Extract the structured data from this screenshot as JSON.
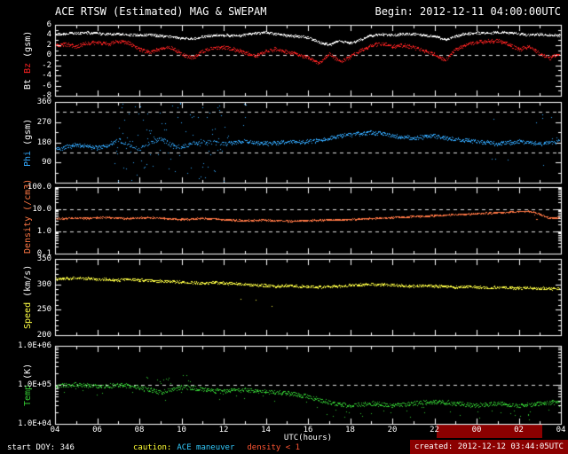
{
  "chart_data": {
    "type": "scatter",
    "title": "ACE RTSW (Estimated) MAG & SWEPAM",
    "begin_label": "Begin: 2012-12-11 04:00:00UTC",
    "x": {
      "label": "UTC(hours)",
      "range_hours": [
        4,
        28
      ],
      "tick_step_hours": 2,
      "ticks": [
        "04",
        "06",
        "08",
        "10",
        "12",
        "14",
        "16",
        "18",
        "20",
        "22",
        "00",
        "02",
        "04"
      ]
    },
    "sample_step_hours": 0.5,
    "panels": [
      {
        "id": "mag",
        "scale": "linear",
        "ylim": [
          -8,
          6
        ],
        "yminor": 1,
        "yticks": [
          [
            6,
            "6"
          ],
          [
            4,
            "4"
          ],
          [
            2,
            "2"
          ],
          [
            0,
            "0"
          ],
          [
            -2,
            "-2"
          ],
          [
            -4,
            "-4"
          ],
          [
            -6,
            "-6"
          ],
          [
            -8,
            "-8"
          ]
        ],
        "dashed": [
          0
        ],
        "ylabel_parts": [
          {
            "text": "Bt",
            "color": "#ffffff"
          },
          {
            "text": "Bz",
            "color": "#ff2222"
          },
          {
            "text": "(gsm)",
            "color": "#ffffff"
          }
        ],
        "series": [
          {
            "name": "Bt",
            "color": "#ffffff",
            "jitter": 0.22,
            "values": [
              4.2,
              4.3,
              4.4,
              4.5,
              4.4,
              4.2,
              4.3,
              4.1,
              4.0,
              4.1,
              3.9,
              3.7,
              3.4,
              3.3,
              3.7,
              4.0,
              4.0,
              3.9,
              4.1,
              4.4,
              4.6,
              4.2,
              3.9,
              3.8,
              3.6,
              2.6,
              2.1,
              3.0,
              2.4,
              3.2,
              3.9,
              4.2,
              4.0,
              4.3,
              4.2,
              4.0,
              3.8,
              3.1,
              3.8,
              4.3,
              4.5,
              4.4,
              4.6,
              4.5,
              4.3,
              4.1,
              4.2,
              4.0,
              4.0
            ]
          },
          {
            "name": "Bz",
            "color": "#ff2222",
            "jitter": 0.35,
            "values": [
              2.0,
              2.2,
              1.8,
              2.4,
              2.6,
              2.2,
              2.8,
              2.5,
              1.2,
              0.6,
              1.4,
              1.6,
              0.3,
              -0.5,
              0.8,
              1.5,
              1.6,
              1.2,
              0.6,
              -0.2,
              0.9,
              1.3,
              0.7,
              0.2,
              -0.4,
              -1.6,
              0.4,
              -1.2,
              -0.3,
              1.0,
              2.0,
              2.3,
              1.8,
              2.0,
              1.6,
              1.0,
              0.2,
              -1.0,
              1.2,
              2.2,
              2.6,
              2.8,
              2.9,
              2.2,
              1.2,
              1.8,
              0.3,
              -0.5,
              0.5
            ]
          }
        ]
      },
      {
        "id": "phi",
        "scale": "linear",
        "ylim": [
          0,
          360
        ],
        "yminor": 45,
        "wrap": true,
        "yticks": [
          [
            360,
            "360"
          ],
          [
            270,
            "270"
          ],
          [
            180,
            "180"
          ],
          [
            90,
            "90"
          ]
        ],
        "dashed": [
          135,
          315
        ],
        "ylabel_parts": [
          {
            "text": "Phi",
            "color": "#33aaff"
          },
          {
            "text": "(gsm)",
            "color": "#ffffff"
          }
        ],
        "series": [
          {
            "name": "Phi",
            "color": "#33aaff",
            "jitter": 9,
            "outliers": [
              {
                "from": 6.8,
                "to": 12.2,
                "prob": 0.35,
                "mode": "uniform",
                "min": 5,
                "max": 355
              },
              {
                "from": 12.8,
                "to": 13.3,
                "prob": 0.12,
                "mode": "uniform",
                "min": 200,
                "max": 355
              },
              {
                "from": 24.4,
                "to": 25.6,
                "prob": 0.1,
                "mode": "uniform",
                "min": 40,
                "max": 330
              },
              {
                "from": 26.5,
                "to": 27.8,
                "prob": 0.1,
                "mode": "uniform",
                "min": 40,
                "max": 330
              }
            ],
            "values": [
              150,
              160,
              170,
              165,
              155,
              170,
              190,
              170,
              150,
              180,
              200,
              170,
              160,
              175,
              185,
              180,
              175,
              180,
              185,
              180,
              175,
              180,
              185,
              180,
              185,
              190,
              200,
              210,
              215,
              220,
              225,
              220,
              210,
              205,
              200,
              205,
              210,
              200,
              195,
              190,
              185,
              180,
              175,
              180,
              185,
              180,
              175,
              180,
              185
            ]
          }
        ]
      },
      {
        "id": "density",
        "scale": "log",
        "ylim": [
          0.1,
          100
        ],
        "yticks": [
          [
            100,
            "100.0"
          ],
          [
            10,
            "10.0"
          ],
          [
            1,
            "1.0"
          ],
          [
            0.1,
            "0.1"
          ]
        ],
        "dashed": [
          10,
          1
        ],
        "ylabel_parts": [
          {
            "text": "Density",
            "color": "#ff7744"
          },
          {
            "text": "(/cm3)",
            "color": "#ff7744"
          }
        ],
        "series": [
          {
            "name": "Density",
            "color": "#ff7744",
            "jitter": 0.035,
            "outliers": [
              {
                "from": 26.6,
                "to": 27.0,
                "prob": 0.15,
                "mode": "dex",
                "amount": -0.35
              }
            ],
            "values": [
              3.8,
              4.0,
              4.2,
              4.0,
              4.3,
              4.5,
              4.2,
              4.0,
              4.2,
              4.4,
              4.1,
              3.8,
              3.6,
              3.8,
              4.0,
              3.8,
              3.5,
              3.3,
              3.2,
              3.4,
              3.3,
              3.2,
              3.0,
              3.1,
              3.2,
              3.3,
              3.5,
              3.4,
              3.6,
              3.8,
              4.0,
              4.2,
              4.4,
              4.6,
              4.8,
              5.0,
              5.3,
              5.6,
              5.9,
              6.2,
              6.5,
              6.8,
              7.2,
              7.6,
              8.0,
              8.5,
              6.0,
              4.0,
              4.5
            ]
          }
        ]
      },
      {
        "id": "speed",
        "scale": "linear",
        "ylim": [
          200,
          350
        ],
        "yminor": 10,
        "yticks": [
          [
            350,
            "350"
          ],
          [
            300,
            "300"
          ],
          [
            250,
            "250"
          ],
          [
            200,
            "200"
          ]
        ],
        "ylabel_parts": [
          {
            "text": "Speed",
            "color": "#ffff44"
          },
          {
            "text": "(km/s)",
            "color": "#ffffff"
          }
        ],
        "series": [
          {
            "name": "Speed",
            "color": "#ffff44",
            "jitter": 2.5,
            "outliers": [
              {
                "from": 12.5,
                "to": 12.9,
                "prob": 0.05,
                "mode": "delta",
                "amount": -30
              },
              {
                "from": 13.3,
                "to": 14.6,
                "prob": 0.04,
                "mode": "delta",
                "amount": -40
              }
            ],
            "values": [
              311,
              312,
              313,
              312,
              311,
              310,
              309,
              310,
              309,
              308,
              307,
              306,
              305,
              304,
              303,
              304,
              303,
              302,
              300,
              299,
              298,
              297,
              298,
              297,
              296,
              295,
              296,
              297,
              299,
              300,
              301,
              300,
              299,
              298,
              297,
              298,
              297,
              296,
              295,
              296,
              295,
              294,
              295,
              294,
              293,
              294,
              293,
              292,
              292
            ]
          }
        ]
      },
      {
        "id": "temp",
        "scale": "log",
        "ylim": [
          10000,
          1000000
        ],
        "yticks": [
          [
            1000000,
            "1.0E+06"
          ],
          [
            100000,
            "1.0E+05"
          ],
          [
            10000,
            "1.0E+04"
          ]
        ],
        "dashed": [
          100000
        ],
        "ylabel_parts": [
          {
            "text": "Temp",
            "color": "#33cc33"
          },
          {
            "text": "(K)",
            "color": "#ffffff"
          }
        ],
        "series": [
          {
            "name": "Temp",
            "color": "#33cc33",
            "jitter": 0.055,
            "outliers": [
              {
                "from": 8.3,
                "to": 10.6,
                "prob": 0.1,
                "mode": "dex",
                "amount": 0.3
              },
              {
                "from": 4,
                "to": 16,
                "prob": 0.02,
                "mode": "dex",
                "amount": -0.25
              },
              {
                "from": 16,
                "to": 28,
                "prob": 0.05,
                "mode": "dex",
                "amount": -0.35
              }
            ],
            "values": [
              95000,
              100000,
              105000,
              98000,
              92000,
              96000,
              100000,
              95000,
              88000,
              75000,
              65000,
              75000,
              90000,
              85000,
              78000,
              72000,
              70000,
              72000,
              75000,
              72000,
              68000,
              65000,
              62000,
              58000,
              50000,
              42000,
              36000,
              32000,
              30000,
              32000,
              34000,
              32000,
              30000,
              32000,
              34000,
              36000,
              38000,
              36000,
              34000,
              32000,
              30000,
              32000,
              34000,
              32000,
              30000,
              32000,
              34000,
              36000,
              38000
            ]
          }
        ]
      }
    ]
  },
  "footer": {
    "start_doy": "start DOY: 346",
    "caution": "caution:",
    "maneuver": "ACE maneuver",
    "density_warning": "density < 1",
    "created": "created: 2012-12-12 03:44:05UTC"
  },
  "colors": {
    "background": "#000000",
    "frame": "#ffffff",
    "highlight_maroon": "#8b0000",
    "dashed_line": "#e0e0e0",
    "bt": "#ffffff",
    "bz": "#ff2222",
    "phi": "#33aaff",
    "density": "#ff7744",
    "speed": "#ffff44",
    "temp": "#33cc33",
    "caution_yellow": "#ffff33",
    "maneuver_cyan": "#33ccff"
  }
}
